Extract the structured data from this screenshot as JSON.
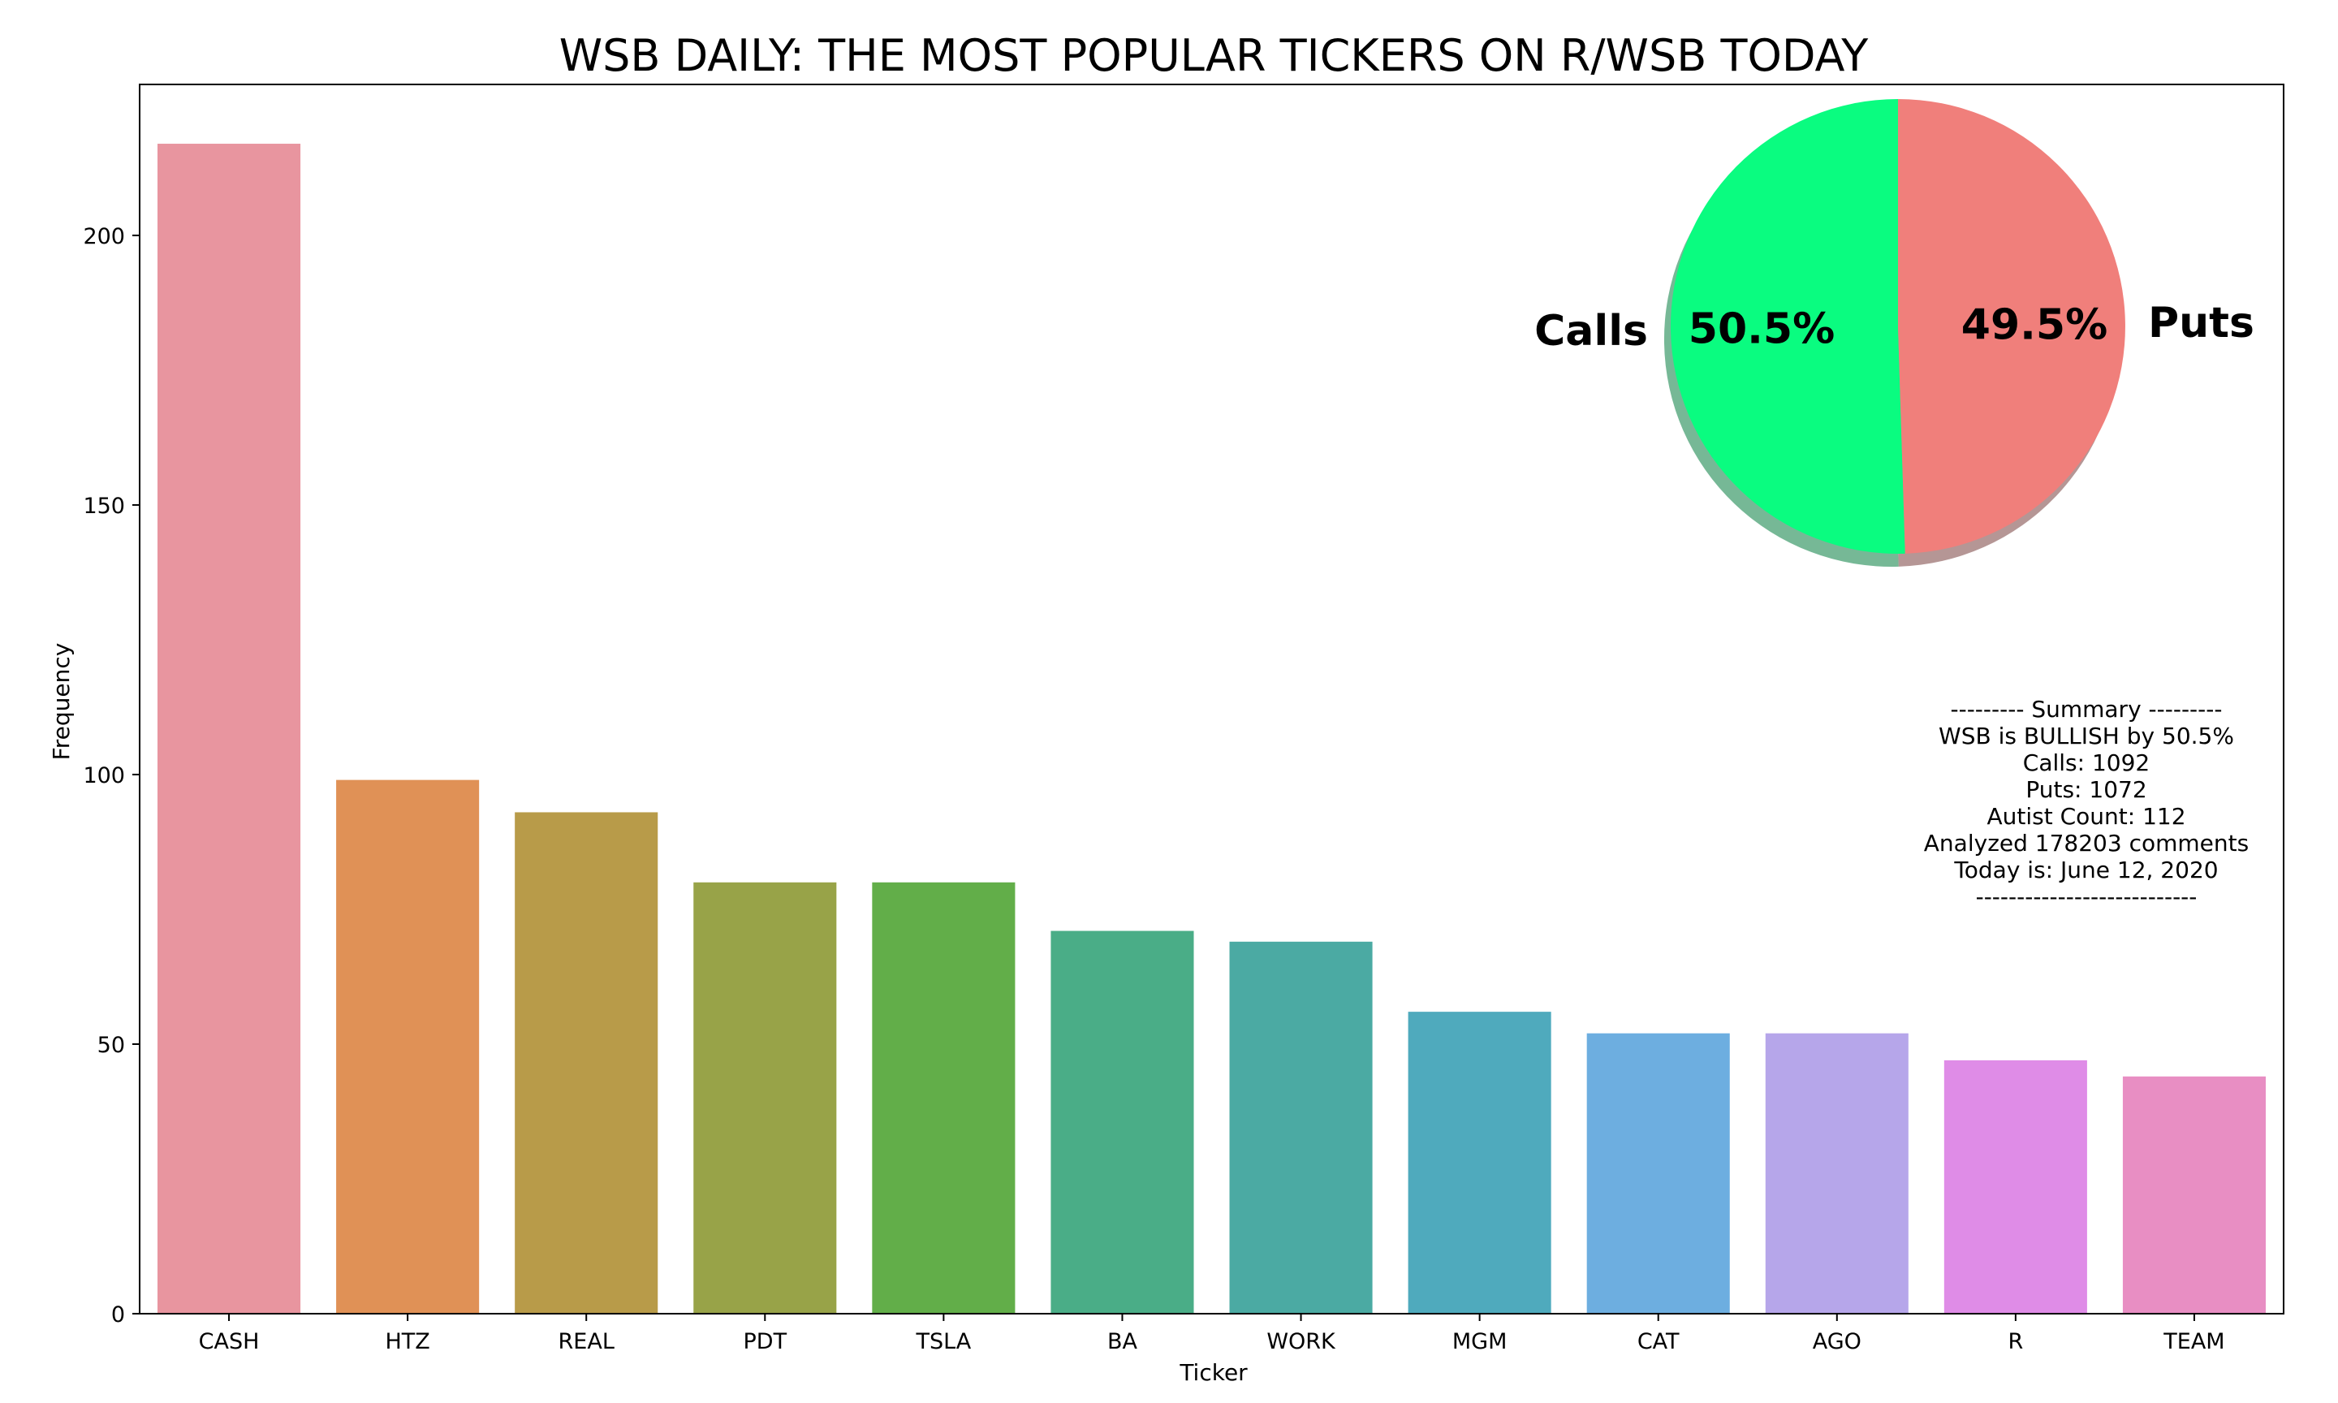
{
  "chart_data": [
    {
      "type": "bar",
      "title": "WSB DAILY: THE MOST POPULAR TICKERS ON R/WSB TODAY",
      "xlabel": "Ticker",
      "ylabel": "Frequency",
      "categories": [
        "CASH",
        "HTZ",
        "REAL",
        "PDT",
        "TSLA",
        "BA",
        "WORK",
        "MGM",
        "CAT",
        "AGO",
        "R",
        "TEAM"
      ],
      "values": [
        217,
        99,
        93,
        80,
        80,
        71,
        69,
        56,
        52,
        52,
        47,
        44
      ],
      "colors": [
        "#e8959f",
        "#e09156",
        "#b89b49",
        "#98a348",
        "#62ae49",
        "#4aad87",
        "#4baaa3",
        "#4faabd",
        "#6daee0",
        "#b6a6ea",
        "#df8ce7",
        "#e88ec3"
      ],
      "ylim": [
        0,
        228
      ],
      "yticks": [
        0,
        50,
        100,
        150,
        200
      ],
      "grid": false
    },
    {
      "type": "pie",
      "labels": [
        "Calls",
        "Puts"
      ],
      "values": [
        50.5,
        49.5
      ],
      "value_labels": [
        "50.5%",
        "49.5%"
      ],
      "colors": [
        "#0afc80",
        "#f07f7b"
      ],
      "shadow": true
    }
  ],
  "summary": {
    "lines": [
      "--------- Summary ---------",
      "WSB is BULLISH by 50.5%",
      "Calls: 1092",
      "Puts: 1072",
      "Autist Count: 112",
      "Analyzed 178203 comments",
      "Today is: June 12, 2020",
      "---------------------------"
    ]
  }
}
